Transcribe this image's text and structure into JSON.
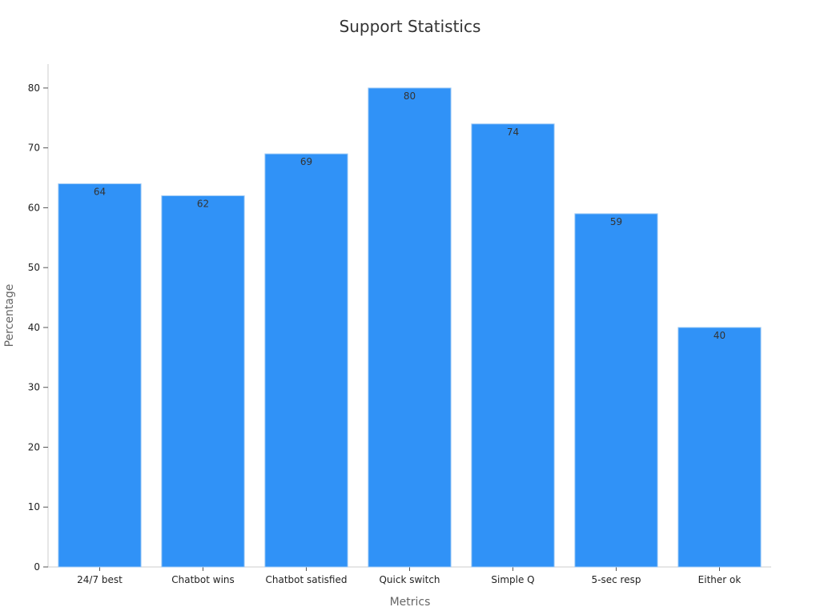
{
  "colors": {
    "bar": "#3092F7",
    "bar_stroke": "#9CC9F5",
    "axis": "#CCCCCC",
    "tick": "#555555"
  },
  "chart_data": {
    "type": "bar",
    "title": "Support Statistics",
    "xlabel": "Metrics",
    "ylabel": "Percentage",
    "categories": [
      "24/7 best",
      "Chatbot wins",
      "Chatbot satisfied",
      "Quick switch",
      "Simple Q",
      "5-sec resp",
      "Either ok"
    ],
    "values": [
      64,
      62,
      69,
      80,
      74,
      59,
      40
    ],
    "ylim": [
      0,
      84
    ],
    "yticks": [
      0,
      10,
      20,
      30,
      40,
      50,
      60,
      70,
      80
    ],
    "grid": false,
    "legend": "none",
    "data_labels": true
  }
}
